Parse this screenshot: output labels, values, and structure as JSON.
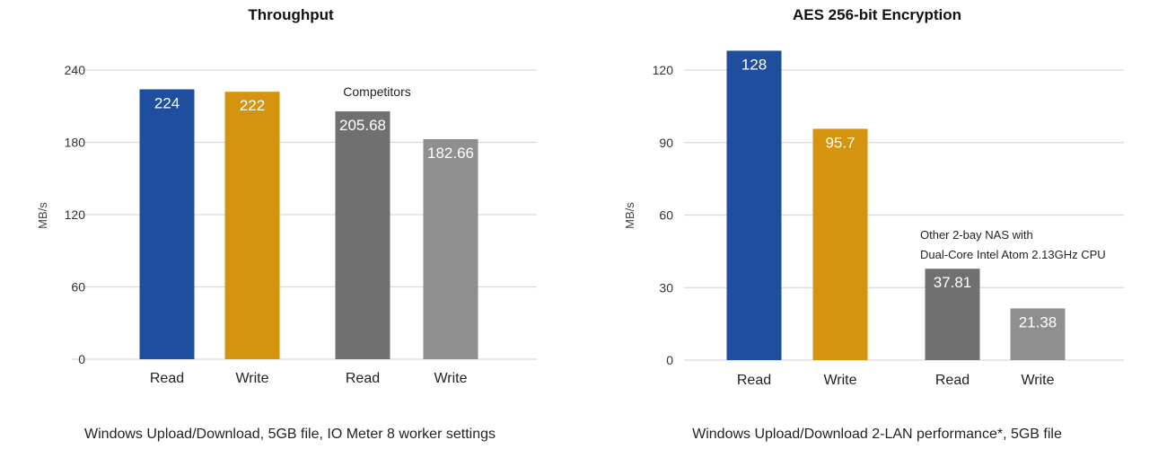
{
  "colors": {
    "blue": "#1f4e9e",
    "gold": "#d4940f",
    "darkgray": "#707070",
    "lightgray": "#8f8f8f",
    "grid": "#d9d9d9",
    "axis_text": "#333333",
    "value_text": "#ffffff"
  },
  "chart_data": [
    {
      "type": "bar",
      "title": "Throughput",
      "ylabel": "MB/s",
      "xlabel": "",
      "ylim": [
        0,
        240
      ],
      "yticks": [
        0,
        60,
        120,
        180,
        240
      ],
      "grid": true,
      "categories": [
        "Read",
        "Write",
        "Read",
        "Write"
      ],
      "values": [
        224,
        222,
        205.68,
        182.66
      ],
      "value_labels": [
        "224",
        "222",
        "205.68",
        "182.66"
      ],
      "bar_colors": [
        "blue",
        "gold",
        "darkgray",
        "lightgray"
      ],
      "annotation": "Competitors",
      "footnote": "Windows Upload/Download, 5GB file, IO Meter 8 worker settings"
    },
    {
      "type": "bar",
      "title": "AES 256-bit Encryption",
      "ylabel": "MB/s",
      "xlabel": "",
      "ylim": [
        0,
        120
      ],
      "yticks": [
        0,
        30,
        60,
        90,
        120
      ],
      "grid": true,
      "categories": [
        "Read",
        "Write",
        "Read",
        "Write"
      ],
      "values": [
        128,
        95.7,
        37.81,
        21.38
      ],
      "value_labels": [
        "128",
        "95.7",
        "37.81",
        "21.38"
      ],
      "bar_colors": [
        "blue",
        "gold",
        "darkgray",
        "lightgray"
      ],
      "annotation": [
        "Other 2-bay NAS with",
        "Dual-Core Intel Atom 2.13GHz CPU"
      ],
      "footnote": "Windows Upload/Download 2-LAN performance*, 5GB file"
    }
  ]
}
